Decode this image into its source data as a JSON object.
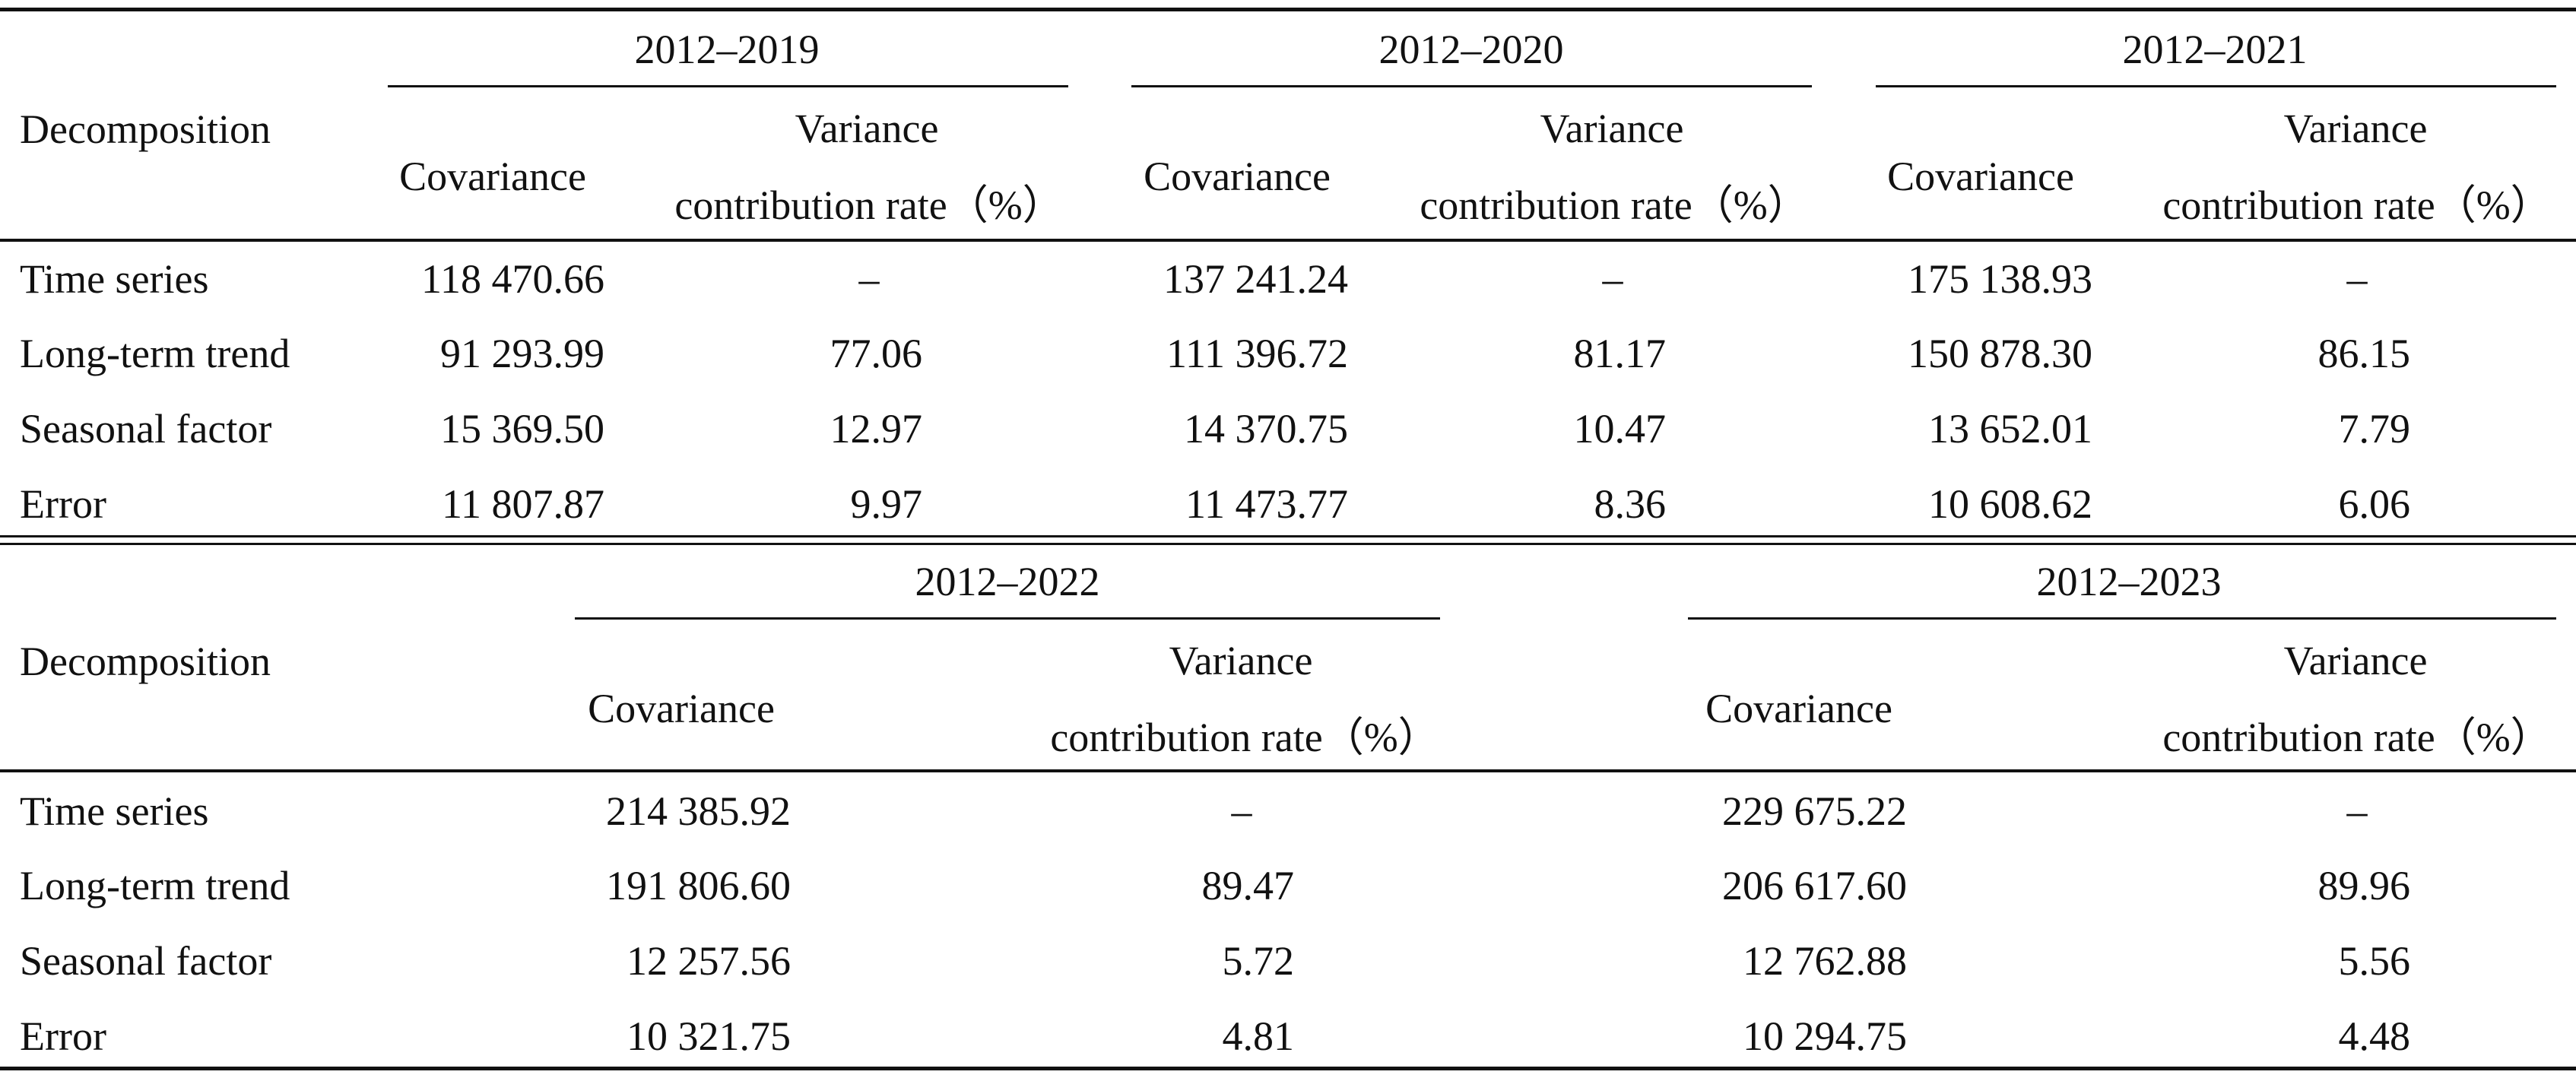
{
  "tables": [
    {
      "row_header": "Decomposition",
      "periods": [
        {
          "label": "2012–2019",
          "col_a": "Covariance",
          "col_b_line1": "Variance",
          "col_b_line2": "contribution rate（%）"
        },
        {
          "label": "2012–2020",
          "col_a": "Covariance",
          "col_b_line1": "Variance",
          "col_b_line2": "contribution rate（%）"
        },
        {
          "label": "2012–2021",
          "col_a": "Covariance",
          "col_b_line1": "Variance",
          "col_b_line2": "contribution rate（%）"
        }
      ],
      "rows": [
        {
          "label": "Time series",
          "cells": [
            "118 470.66",
            "–",
            "137 241.24",
            "–",
            "175 138.93",
            "–"
          ]
        },
        {
          "label": "Long-term trend",
          "cells": [
            "91 293.99",
            "77.06",
            "111 396.72",
            "81.17",
            "150 878.30",
            "86.15"
          ]
        },
        {
          "label": "Seasonal factor",
          "cells": [
            "15 369.50",
            "12.97",
            "14 370.75",
            "10.47",
            "13 652.01",
            "7.79"
          ]
        },
        {
          "label": "Error",
          "cells": [
            "11 807.87",
            "9.97",
            "11 473.77",
            "8.36",
            "10 608.62",
            "6.06"
          ]
        }
      ]
    },
    {
      "row_header": "Decomposition",
      "periods": [
        {
          "label": "2012–2022",
          "col_a": "Covariance",
          "col_b_line1": "Variance",
          "col_b_line2": "contribution rate（%）"
        },
        {
          "label": "2012–2023",
          "col_a": "Covariance",
          "col_b_line1": "Variance",
          "col_b_line2": "contribution rate（%）"
        }
      ],
      "rows": [
        {
          "label": "Time series",
          "cells": [
            "214 385.92",
            "–",
            "229 675.22",
            "–"
          ]
        },
        {
          "label": "Long-term trend",
          "cells": [
            "191 806.60",
            "89.47",
            "206 617.60",
            "89.96"
          ]
        },
        {
          "label": "Seasonal factor",
          "cells": [
            "12 257.56",
            "5.72",
            "12 762.88",
            "5.56"
          ]
        },
        {
          "label": "Error",
          "cells": [
            "10 321.75",
            "4.81",
            "10 294.75",
            "4.48"
          ]
        }
      ]
    }
  ]
}
